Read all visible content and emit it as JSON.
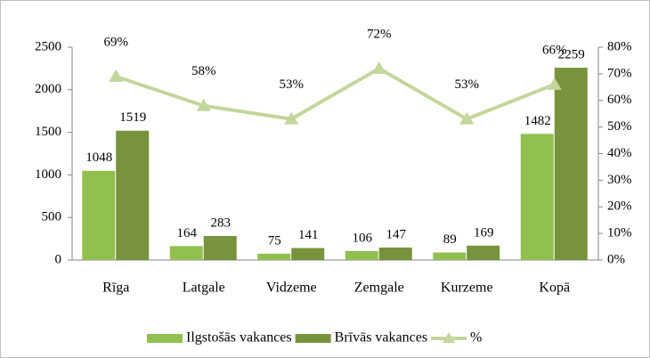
{
  "chart_data": {
    "type": "bar",
    "categories": [
      "Rīga",
      "Latgale",
      "Vidzeme",
      "Zemgale",
      "Kurzeme",
      "Kopā"
    ],
    "series": [
      {
        "name": "Ilgstošās vakances",
        "color": "#92c050",
        "values": [
          1048,
          164,
          75,
          106,
          89,
          1482
        ]
      },
      {
        "name": "Brīvās vakances",
        "color": "#77933c",
        "values": [
          1519,
          283,
          141,
          147,
          169,
          2259
        ]
      },
      {
        "name": "%",
        "type": "line",
        "axis": "y2",
        "color": "#c3d69b",
        "values": [
          69,
          58,
          53,
          72,
          53,
          66
        ],
        "value_labels": [
          "69%",
          "58%",
          "53%",
          "72%",
          "53%",
          "66%"
        ]
      }
    ],
    "ylim": [
      0,
      2500
    ],
    "yticks": [
      0,
      500,
      1000,
      1500,
      2000,
      2500
    ],
    "y2lim": [
      0,
      80
    ],
    "y2ticks": [
      {
        "value": 0,
        "label": "0%"
      },
      {
        "value": 10,
        "label": "10%"
      },
      {
        "value": 20,
        "label": "20%"
      },
      {
        "value": 30,
        "label": "30%"
      },
      {
        "value": 40,
        "label": "40%"
      },
      {
        "value": 50,
        "label": "50%"
      },
      {
        "value": 60,
        "label": "60%"
      },
      {
        "value": 70,
        "label": "70%"
      },
      {
        "value": 80,
        "label": "80%"
      }
    ],
    "legend": "bottom"
  }
}
